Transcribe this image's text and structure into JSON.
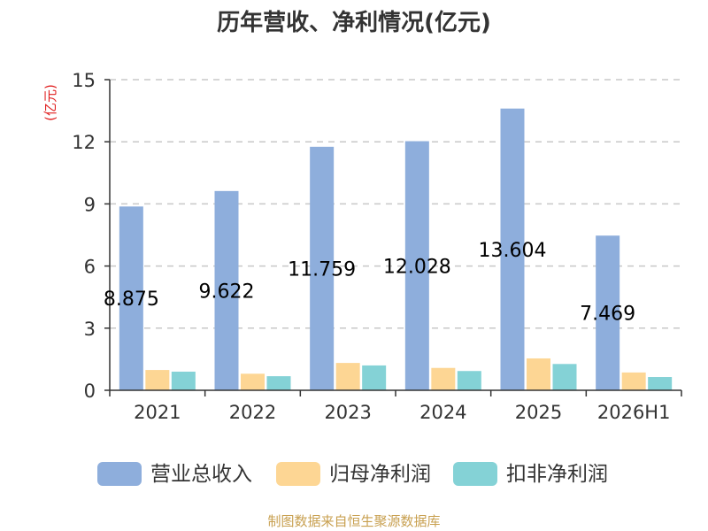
{
  "chart_data": {
    "type": "bar",
    "title": "历年营收、净利情况(亿元)",
    "ylabel": "(亿元)",
    "categories": [
      "2021",
      "2022",
      "2023",
      "2024",
      "2025",
      "2026H1"
    ],
    "ylim": [
      0,
      15
    ],
    "yticks": [
      0,
      3,
      6,
      9,
      12,
      15
    ],
    "grid": true,
    "legend_position": "bottom",
    "series": [
      {
        "name": "营业总收入",
        "color": "#8eaedc",
        "values": [
          8.875,
          9.622,
          11.759,
          12.028,
          13.604,
          7.469
        ],
        "labels": [
          "8.875",
          "9.622",
          "11.759",
          "12.028",
          "13.604",
          "7.469"
        ]
      },
      {
        "name": "归母净利润",
        "color": "#fdd694",
        "values": [
          0.98,
          0.8,
          1.32,
          1.08,
          1.54,
          0.86
        ]
      },
      {
        "name": "扣非净利润",
        "color": "#84d2d6",
        "values": [
          0.9,
          0.68,
          1.2,
          0.93,
          1.27,
          0.64
        ]
      }
    ]
  },
  "source_text": "制图数据来自恒生聚源数据库",
  "colors": {
    "unit_label": "#e02020",
    "source": "#c8a050",
    "grid": "#c8c8c8",
    "axis": "#333333"
  }
}
